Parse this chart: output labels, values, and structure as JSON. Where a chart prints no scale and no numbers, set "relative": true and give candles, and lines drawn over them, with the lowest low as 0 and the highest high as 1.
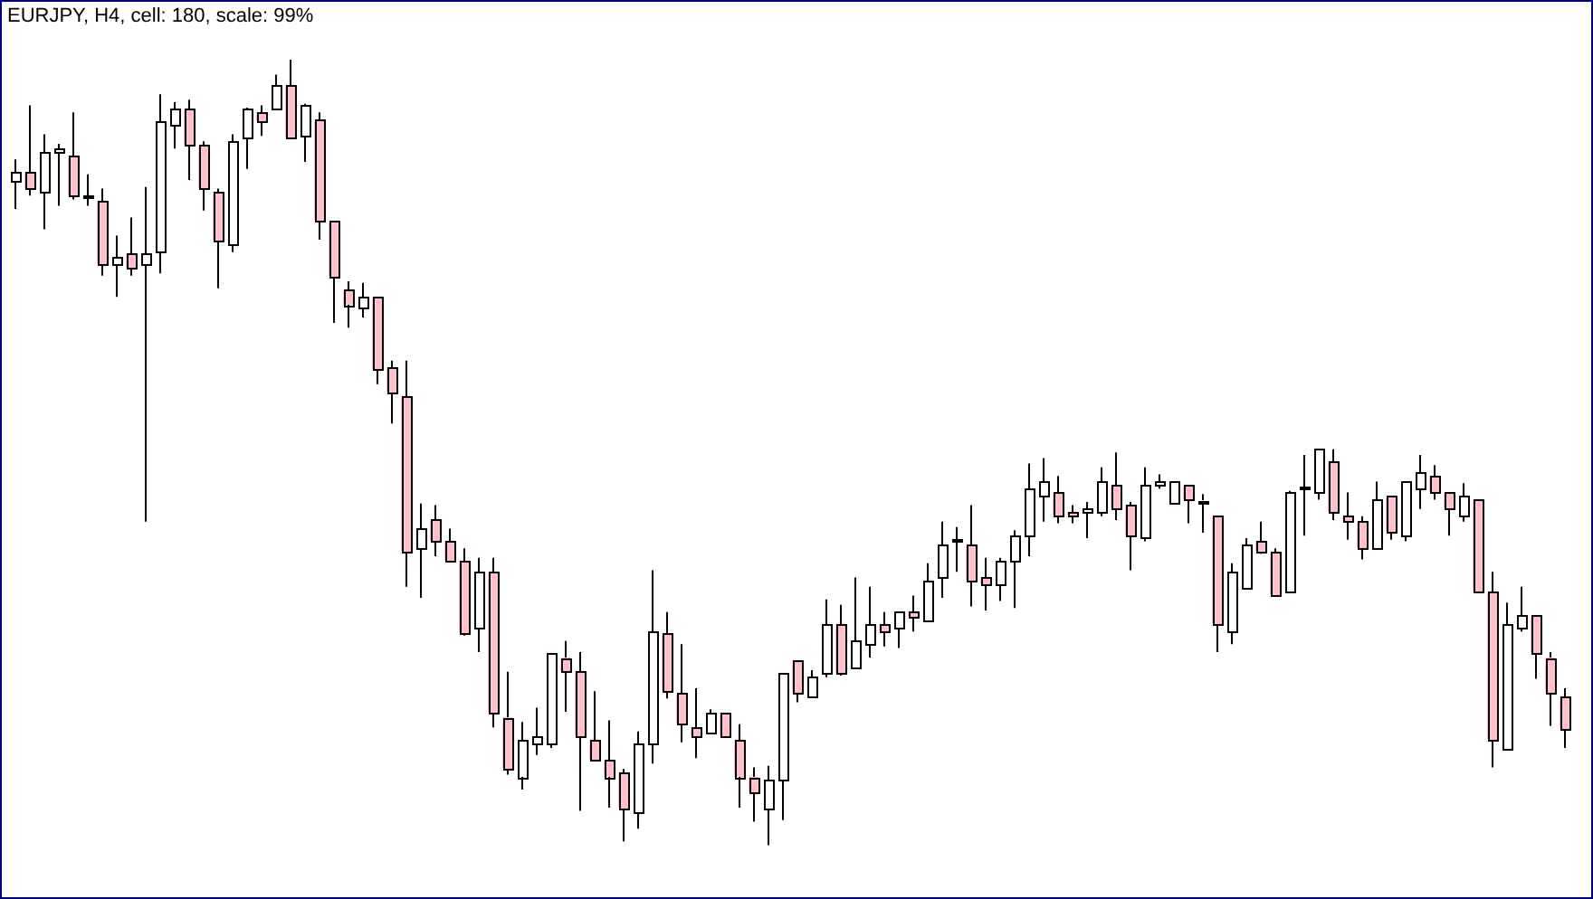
{
  "chart_data": {
    "type": "candlestick",
    "title": "EURJPY, H4, cell: 180, scale: 99%",
    "relative": true,
    "colors": [
      "#ffffff",
      "#ffc0cb",
      "#ffffff",
      "#ffffff",
      "#ffc0cb",
      "#ffffff",
      "#ffc0cb",
      "#ffffff",
      "#ffc0cb",
      "#ffffff",
      "#ffffff",
      "#ffffff",
      "#ffc0cb",
      "#ffc0cb",
      "#ffc0cb",
      "#ffffff",
      "#ffffff",
      "#ffc0cb",
      "#ffffff",
      "#ffc0cb",
      "#ffffff",
      "#ffc0cb",
      "#ffc0cb",
      "#ffc0cb",
      "#ffffff",
      "#ffc0cb",
      "#ffc0cb",
      "#ffc0cb",
      "#ffffff",
      "#ffc0cb",
      "#ffc0cb",
      "#ffc0cb",
      "#ffffff",
      "#ffc0cb",
      "#ffc0cb",
      "#ffffff",
      "#ffffff",
      "#ffffff",
      "#ffc0cb",
      "#ffc0cb",
      "#ffc0cb",
      "#ffc0cb",
      "#ffc0cb",
      "#ffffff",
      "#ffffff",
      "#ffc0cb",
      "#ffc0cb",
      "#ffc0cb",
      "#ffffff",
      "#ffc0cb",
      "#ffc0cb",
      "#ffc0cb",
      "#ffffff",
      "#ffffff",
      "#ffc0cb",
      "#ffffff",
      "#ffffff",
      "#ffc0cb",
      "#ffffff",
      "#ffffff",
      "#ffc0cb",
      "#ffffff",
      "#ffc0cb",
      "#ffffff",
      "#ffffff",
      "#ffffff",
      "#ffc0cb",
      "#ffc0cb",
      "#ffffff",
      "#ffffff",
      "#ffffff",
      "#ffffff",
      "#ffc0cb",
      "#ffc0cb",
      "#ffffff",
      "#ffffff",
      "#ffc0cb",
      "#ffc0cb",
      "#ffffff",
      "#ffffff",
      "#ffffff",
      "#ffc0cb",
      "#ffffff",
      "#ffc0cb",
      "#ffffff",
      "#ffffff",
      "#ffc0cb",
      "#ffc0cb",
      "#ffffff",
      "#ffffff",
      "#ffffff",
      "#ffc0cb",
      "#ffc0cb",
      "#ffc0cb",
      "#ffffff",
      "#ffc0cb",
      "#ffffff",
      "#ffffff",
      "#ffc0cb",
      "#ffc0cb",
      "#ffffff",
      "#ffc0cb",
      "#ffc0cb",
      "#ffffff",
      "#ffffff",
      "#ffc0cb",
      "#ffc0cb",
      "#ffc0cb"
    ],
    "categories": [
      null,
      null,
      null,
      null,
      null,
      null,
      null,
      null,
      null,
      null,
      null,
      null,
      null,
      null,
      null,
      null,
      null,
      null,
      null,
      null,
      null,
      null,
      null,
      null,
      null,
      null,
      null,
      null,
      null,
      null,
      null,
      null,
      null,
      null,
      null,
      null,
      null,
      null,
      null,
      null,
      null,
      null,
      null,
      null,
      null,
      null,
      null,
      null,
      null,
      null,
      null,
      null,
      null,
      null,
      null,
      null,
      null,
      null,
      null,
      null,
      null,
      null,
      null,
      null,
      null,
      null,
      null,
      null,
      null,
      null,
      null,
      null,
      null,
      null,
      null,
      null,
      null,
      null,
      null,
      null,
      null,
      null,
      null,
      null,
      null,
      null,
      null,
      null,
      null,
      null,
      null,
      null,
      null,
      null,
      null,
      null,
      null,
      null,
      null,
      null,
      null,
      null,
      null,
      null,
      null,
      null,
      null,
      null
    ],
    "ohlc": [
      [
        0.845,
        0.873,
        0.81,
        0.857
      ],
      [
        0.857,
        0.942,
        0.827,
        0.836
      ],
      [
        0.831,
        0.905,
        0.784,
        0.882
      ],
      [
        0.882,
        0.893,
        0.814,
        0.887
      ],
      [
        0.877,
        0.933,
        0.822,
        0.827
      ],
      [
        0.824,
        0.854,
        0.814,
        0.824
      ],
      [
        0.82,
        0.836,
        0.725,
        0.739
      ],
      [
        0.739,
        0.776,
        0.698,
        0.748
      ],
      [
        0.753,
        0.799,
        0.725,
        0.735
      ],
      [
        0.739,
        0.838,
        0.412,
        0.753
      ],
      [
        0.755,
        0.956,
        0.728,
        0.921
      ],
      [
        0.916,
        0.946,
        0.887,
        0.937
      ],
      [
        0.937,
        0.949,
        0.847,
        0.891
      ],
      [
        0.891,
        0.896,
        0.808,
        0.836
      ],
      [
        0.831,
        0.836,
        0.709,
        0.769
      ],
      [
        0.764,
        0.905,
        0.755,
        0.896
      ],
      [
        0.9,
        0.939,
        0.861,
        0.937
      ],
      [
        0.933,
        0.942,
        0.903,
        0.921
      ],
      [
        0.937,
        0.981,
        0.937,
        0.967
      ],
      [
        0.967,
        1,
        0.9,
        0.9
      ],
      [
        0.903,
        0.944,
        0.87,
        0.942
      ],
      [
        0.923,
        0.933,
        0.771,
        0.794
      ],
      [
        0.794,
        0.794,
        0.665,
        0.723
      ],
      [
        0.707,
        0.718,
        0.659,
        0.688
      ],
      [
        0.684,
        0.716,
        0.672,
        0.698
      ],
      [
        0.698,
        0.698,
        0.587,
        0.606
      ],
      [
        0.608,
        0.617,
        0.537,
        0.576
      ],
      [
        0.571,
        0.617,
        0.329,
        0.373
      ],
      [
        0.378,
        0.435,
        0.315,
        0.403
      ],
      [
        0.414,
        0.433,
        0.368,
        0.387
      ],
      [
        0.387,
        0.403,
        0.362,
        0.362
      ],
      [
        0.362,
        0.378,
        0.267,
        0.269
      ],
      [
        0.276,
        0.366,
        0.246,
        0.348
      ],
      [
        0.348,
        0.366,
        0.15,
        0.168
      ],
      [
        0.163,
        0.221,
        0.09,
        0.097
      ],
      [
        0.087,
        0.157,
        0.071,
        0.134
      ],
      [
        0.129,
        0.175,
        0.115,
        0.138
      ],
      [
        0.129,
        0.244,
        0.124,
        0.244
      ],
      [
        0.239,
        0.26,
        0.17,
        0.221
      ],
      [
        0.221,
        0.246,
        0.044,
        0.138
      ],
      [
        0.134,
        0.196,
        0.108,
        0.108
      ],
      [
        0.108,
        0.159,
        0.048,
        0.087
      ],
      [
        0.092,
        0.097,
        0.005,
        0.046
      ],
      [
        0.041,
        0.145,
        0.021,
        0.129
      ],
      [
        0.129,
        0.35,
        0.104,
        0.272
      ],
      [
        0.269,
        0.297,
        0.187,
        0.196
      ],
      [
        0.193,
        0.256,
        0.131,
        0.154
      ],
      [
        0.15,
        0.2,
        0.111,
        0.138
      ],
      [
        0.143,
        0.173,
        0.143,
        0.168
      ],
      [
        0.168,
        0.168,
        0.138,
        0.138
      ],
      [
        0.134,
        0.154,
        0.048,
        0.087
      ],
      [
        0.087,
        0.099,
        0.03,
        0.067
      ],
      [
        0.046,
        0.101,
        0,
        0.083
      ],
      [
        0.083,
        0.219,
        0.032,
        0.219
      ],
      [
        0.235,
        0.235,
        0.182,
        0.193
      ],
      [
        0.189,
        0.223,
        0.189,
        0.214
      ],
      [
        0.219,
        0.313,
        0.214,
        0.281
      ],
      [
        0.281,
        0.306,
        0.216,
        0.219
      ],
      [
        0.226,
        0.341,
        0.226,
        0.26
      ],
      [
        0.256,
        0.329,
        0.239,
        0.281
      ],
      [
        0.281,
        0.297,
        0.253,
        0.272
      ],
      [
        0.276,
        0.297,
        0.251,
        0.297
      ],
      [
        0.297,
        0.318,
        0.272,
        0.29
      ],
      [
        0.286,
        0.359,
        0.286,
        0.336
      ],
      [
        0.341,
        0.412,
        0.315,
        0.382
      ],
      [
        0.387,
        0.405,
        0.348,
        0.387
      ],
      [
        0.382,
        0.433,
        0.304,
        0.336
      ],
      [
        0.341,
        0.366,
        0.299,
        0.332
      ],
      [
        0.332,
        0.366,
        0.311,
        0.362
      ],
      [
        0.362,
        0.401,
        0.302,
        0.394
      ],
      [
        0.394,
        0.486,
        0.368,
        0.454
      ],
      [
        0.444,
        0.493,
        0.412,
        0.463
      ],
      [
        0.449,
        0.47,
        0.41,
        0.419
      ],
      [
        0.424,
        0.433,
        0.41,
        0.419
      ],
      [
        0.424,
        0.437,
        0.391,
        0.428
      ],
      [
        0.424,
        0.481,
        0.419,
        0.463
      ],
      [
        0.458,
        0.5,
        0.414,
        0.428
      ],
      [
        0.433,
        0.437,
        0.35,
        0.394
      ],
      [
        0.391,
        0.481,
        0.387,
        0.458
      ],
      [
        0.458,
        0.472,
        0.454,
        0.463
      ],
      [
        0.437,
        0.463,
        0.437,
        0.463
      ],
      [
        0.458,
        0.458,
        0.41,
        0.44
      ],
      [
        0.437,
        0.447,
        0.398,
        0.437
      ],
      [
        0.419,
        0.419,
        0.246,
        0.281
      ],
      [
        0.272,
        0.359,
        0.256,
        0.348
      ],
      [
        0.327,
        0.391,
        0.327,
        0.382
      ],
      [
        0.387,
        0.412,
        0.371,
        0.373
      ],
      [
        0.373,
        0.378,
        0.318,
        0.318
      ],
      [
        0.322,
        0.451,
        0.322,
        0.449
      ],
      [
        0.454,
        0.497,
        0.394,
        0.454
      ],
      [
        0.449,
        0.504,
        0.44,
        0.504
      ],
      [
        0.488,
        0.504,
        0.414,
        0.424
      ],
      [
        0.419,
        0.449,
        0.389,
        0.412
      ],
      [
        0.412,
        0.419,
        0.364,
        0.378
      ],
      [
        0.378,
        0.463,
        0.378,
        0.44
      ],
      [
        0.444,
        0.444,
        0.389,
        0.398
      ],
      [
        0.394,
        0.463,
        0.387,
        0.463
      ],
      [
        0.454,
        0.497,
        0.428,
        0.474
      ],
      [
        0.47,
        0.484,
        0.44,
        0.449
      ],
      [
        0.449,
        0.449,
        0.394,
        0.428
      ],
      [
        0.419,
        0.461,
        0.412,
        0.444
      ],
      [
        0.44,
        0.44,
        0.322,
        0.322
      ],
      [
        0.322,
        0.348,
        0.099,
        0.134
      ],
      [
        0.122,
        0.309,
        0.122,
        0.281
      ],
      [
        0.276,
        0.329,
        0.272,
        0.292
      ],
      [
        0.292,
        0.292,
        0.212,
        0.244
      ],
      [
        0.239,
        0.246,
        0.152,
        0.193
      ],
      [
        0.189,
        0.2,
        0.124,
        0.147
      ]
    ]
  }
}
